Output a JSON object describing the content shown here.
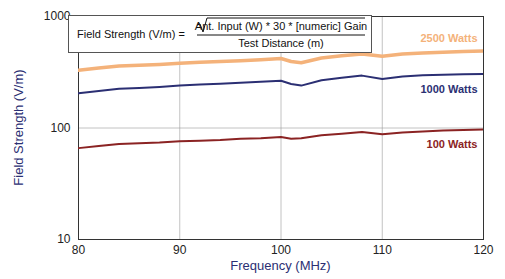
{
  "chart_data": {
    "type": "line",
    "annotations": [
      "Field Strength (V/m) =",
      "Ant. Input (W) * 30 * [numeric] Gain",
      "Test Distance (m)"
    ],
    "x_label": "Frequency (MHz)",
    "y_label": "Field Strength (V/m)",
    "x": [
      80,
      82,
      84,
      86,
      88,
      90,
      92,
      94,
      96,
      98,
      100,
      101,
      102,
      104,
      106,
      108,
      110,
      112,
      114,
      116,
      118,
      120
    ],
    "series": [
      {
        "name": "2500 Watts",
        "color": "#f4b27a",
        "values": [
          330,
          345,
          360,
          365,
          372,
          380,
          388,
          395,
          402,
          410,
          420,
          395,
          385,
          425,
          445,
          460,
          440,
          462,
          470,
          478,
          485,
          490
        ]
      },
      {
        "name": "1000 Watts",
        "color": "#2b2f73",
        "values": [
          205,
          215,
          225,
          228,
          233,
          240,
          245,
          250,
          255,
          260,
          265,
          248,
          240,
          268,
          282,
          295,
          275,
          290,
          297,
          300,
          303,
          305
        ]
      },
      {
        "name": "100 Watts",
        "color": "#8b2323",
        "values": [
          66,
          69,
          72,
          73,
          74,
          76,
          77,
          78,
          80,
          81,
          83,
          80,
          81,
          86,
          89,
          92,
          88,
          91,
          93,
          95,
          96,
          97
        ]
      }
    ],
    "xlim": [
      80,
      120
    ],
    "ylim": [
      10,
      1000
    ],
    "xticks": [
      80,
      90,
      100,
      110,
      120
    ],
    "yticks": [
      10,
      100,
      1000
    ],
    "log": "y",
    "grid": true
  }
}
